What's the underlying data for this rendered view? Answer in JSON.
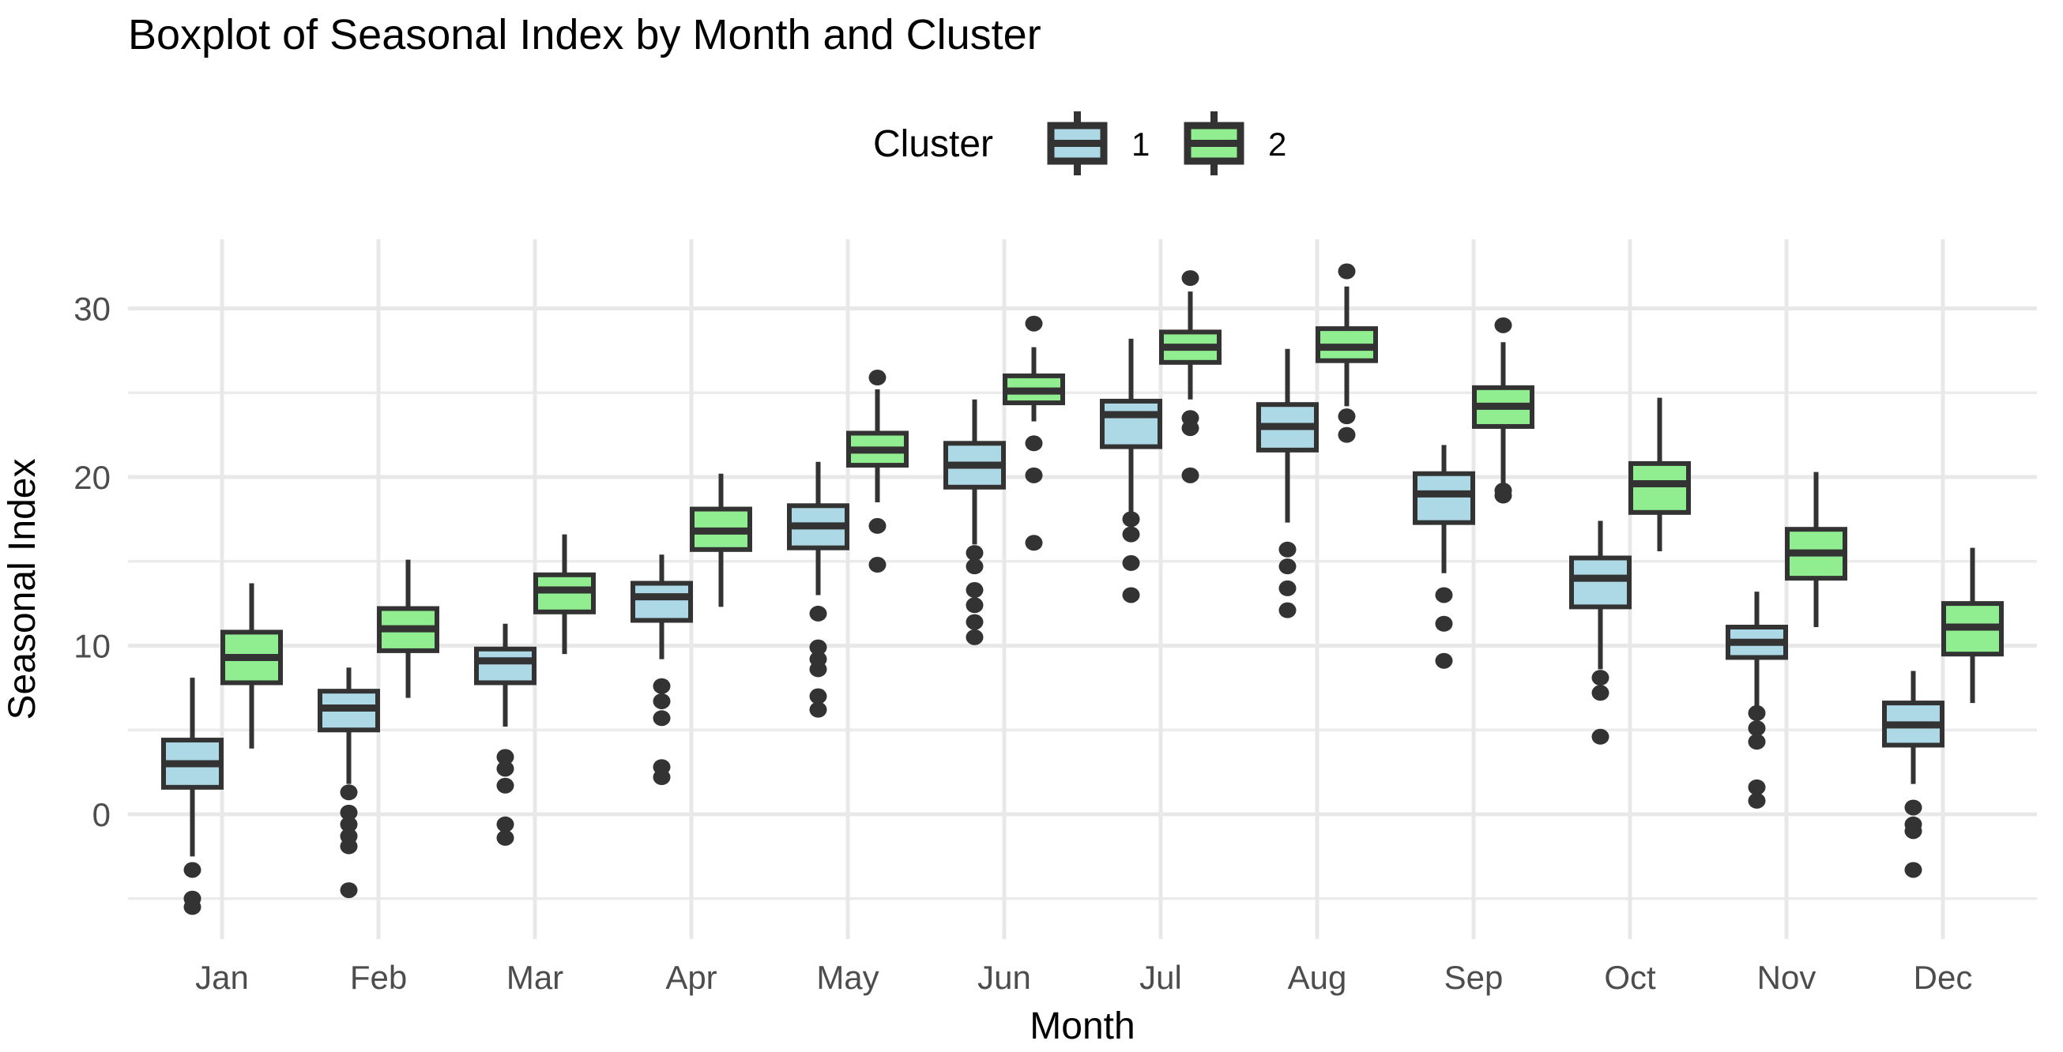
{
  "title": "Boxplot of Seasonal Index by Month and Cluster",
  "legend": {
    "title": "Cluster",
    "items": [
      {
        "label": "1",
        "color": "#ADD8E6"
      },
      {
        "label": "2",
        "color": "#90EE90"
      }
    ]
  },
  "axes": {
    "y": {
      "title": "Seasonal Index",
      "major_ticks": [
        0,
        10,
        20,
        30
      ],
      "minor_ticks": [
        -5,
        5,
        15,
        25
      ],
      "range": [
        -7.4,
        34.1
      ]
    },
    "x": {
      "title": "Month",
      "categories": [
        "Jan",
        "Feb",
        "Mar",
        "Apr",
        "May",
        "Jun",
        "Jul",
        "Aug",
        "Sep",
        "Oct",
        "Nov",
        "Dec"
      ]
    }
  },
  "colors": {
    "cluster1_fill": "#ADD8E6",
    "cluster2_fill": "#90EE90",
    "box_stroke": "#333333",
    "outlier": "#333333",
    "grid_major": "#e8e8e8",
    "grid_minor": "#ebebeb",
    "tick_text": "#4d4d4d"
  },
  "chart_data": {
    "type": "boxplot",
    "title": "Boxplot of Seasonal Index by Month and Cluster",
    "xlabel": "Month",
    "ylabel": "Seasonal Index",
    "ylim": [
      -7.4,
      34.1
    ],
    "grid": "major-and-minor horizontal every 5, vertical at each month",
    "legend_position": "top-center",
    "categories": [
      "Jan",
      "Feb",
      "Mar",
      "Apr",
      "May",
      "Jun",
      "Jul",
      "Aug",
      "Sep",
      "Oct",
      "Nov",
      "Dec"
    ],
    "series": [
      {
        "name": "1",
        "fill": "#ADD8E6",
        "boxes": [
          {
            "month": "Jan",
            "whisker_low": -2.5,
            "q1": 1.6,
            "median": 3.0,
            "q3": 4.4,
            "whisker_high": 8.1,
            "outliers": [
              -3.3,
              -5.0,
              -5.5
            ]
          },
          {
            "month": "Feb",
            "whisker_low": 1.8,
            "q1": 5.0,
            "median": 6.3,
            "q3": 7.3,
            "whisker_high": 8.7,
            "outliers": [
              1.3,
              0.1,
              -0.6,
              -1.3,
              -1.9,
              -4.5
            ]
          },
          {
            "month": "Mar",
            "whisker_low": 5.2,
            "q1": 7.8,
            "median": 9.1,
            "q3": 9.8,
            "whisker_high": 11.3,
            "outliers": [
              3.4,
              2.7,
              1.7,
              -0.6,
              -1.4
            ]
          },
          {
            "month": "Apr",
            "whisker_low": 9.2,
            "q1": 11.5,
            "median": 12.9,
            "q3": 13.7,
            "whisker_high": 15.4,
            "outliers": [
              7.6,
              6.7,
              5.7,
              2.8,
              2.2
            ]
          },
          {
            "month": "May",
            "whisker_low": 13.0,
            "q1": 15.8,
            "median": 17.1,
            "q3": 18.3,
            "whisker_high": 20.9,
            "outliers": [
              11.9,
              9.9,
              9.2,
              8.6,
              7.0,
              6.2
            ]
          },
          {
            "month": "Jun",
            "whisker_low": 16.0,
            "q1": 19.4,
            "median": 20.7,
            "q3": 22.0,
            "whisker_high": 24.6,
            "outliers": [
              15.5,
              14.7,
              13.3,
              12.4,
              11.4,
              10.5
            ]
          },
          {
            "month": "Jul",
            "whisker_low": 17.8,
            "q1": 21.8,
            "median": 23.7,
            "q3": 24.5,
            "whisker_high": 28.2,
            "outliers": [
              17.5,
              16.6,
              14.9,
              13.0
            ]
          },
          {
            "month": "Aug",
            "whisker_low": 17.3,
            "q1": 21.6,
            "median": 23.0,
            "q3": 24.3,
            "whisker_high": 27.6,
            "outliers": [
              15.7,
              14.7,
              13.4,
              12.1
            ]
          },
          {
            "month": "Sep",
            "whisker_low": 14.3,
            "q1": 17.3,
            "median": 19.0,
            "q3": 20.2,
            "whisker_high": 21.9,
            "outliers": [
              13.0,
              11.3,
              9.1
            ]
          },
          {
            "month": "Oct",
            "whisker_low": 8.6,
            "q1": 12.3,
            "median": 14.0,
            "q3": 15.2,
            "whisker_high": 17.4,
            "outliers": [
              8.1,
              7.2,
              4.6
            ]
          },
          {
            "month": "Nov",
            "whisker_low": 6.4,
            "q1": 9.3,
            "median": 10.2,
            "q3": 11.1,
            "whisker_high": 13.2,
            "outliers": [
              6.0,
              5.1,
              4.3,
              1.6,
              0.8
            ]
          },
          {
            "month": "Dec",
            "whisker_low": 1.8,
            "q1": 4.1,
            "median": 5.3,
            "q3": 6.6,
            "whisker_high": 8.5,
            "outliers": [
              0.4,
              -0.6,
              -1.0,
              -3.3
            ]
          }
        ]
      },
      {
        "name": "2",
        "fill": "#90EE90",
        "boxes": [
          {
            "month": "Jan",
            "whisker_low": 3.9,
            "q1": 7.8,
            "median": 9.3,
            "q3": 10.8,
            "whisker_high": 13.7,
            "outliers": []
          },
          {
            "month": "Feb",
            "whisker_low": 6.9,
            "q1": 9.7,
            "median": 11.0,
            "q3": 12.2,
            "whisker_high": 15.1,
            "outliers": []
          },
          {
            "month": "Mar",
            "whisker_low": 9.5,
            "q1": 12.0,
            "median": 13.3,
            "q3": 14.2,
            "whisker_high": 16.6,
            "outliers": []
          },
          {
            "month": "Apr",
            "whisker_low": 12.3,
            "q1": 15.7,
            "median": 16.8,
            "q3": 18.1,
            "whisker_high": 20.2,
            "outliers": []
          },
          {
            "month": "May",
            "whisker_low": 18.5,
            "q1": 20.7,
            "median": 21.6,
            "q3": 22.6,
            "whisker_high": 25.2,
            "outliers": [
              25.9,
              17.1,
              14.8
            ]
          },
          {
            "month": "Jun",
            "whisker_low": 23.3,
            "q1": 24.4,
            "median": 25.1,
            "q3": 26.0,
            "whisker_high": 27.7,
            "outliers": [
              29.1,
              22.0,
              20.1,
              16.1
            ]
          },
          {
            "month": "Jul",
            "whisker_low": 24.6,
            "q1": 26.8,
            "median": 27.7,
            "q3": 28.6,
            "whisker_high": 31.0,
            "outliers": [
              31.8,
              23.5,
              22.9,
              20.1
            ]
          },
          {
            "month": "Aug",
            "whisker_low": 24.2,
            "q1": 26.9,
            "median": 27.7,
            "q3": 28.8,
            "whisker_high": 31.3,
            "outliers": [
              32.2,
              23.6,
              22.5
            ]
          },
          {
            "month": "Sep",
            "whisker_low": 19.6,
            "q1": 23.0,
            "median": 24.2,
            "q3": 25.3,
            "whisker_high": 28.0,
            "outliers": [
              29.0,
              19.2,
              18.9
            ]
          },
          {
            "month": "Oct",
            "whisker_low": 15.6,
            "q1": 17.9,
            "median": 19.6,
            "q3": 20.8,
            "whisker_high": 24.7,
            "outliers": []
          },
          {
            "month": "Nov",
            "whisker_low": 11.1,
            "q1": 14.0,
            "median": 15.5,
            "q3": 16.9,
            "whisker_high": 20.3,
            "outliers": []
          },
          {
            "month": "Dec",
            "whisker_low": 6.6,
            "q1": 9.5,
            "median": 11.1,
            "q3": 12.5,
            "whisker_high": 15.8,
            "outliers": []
          }
        ]
      }
    ]
  }
}
